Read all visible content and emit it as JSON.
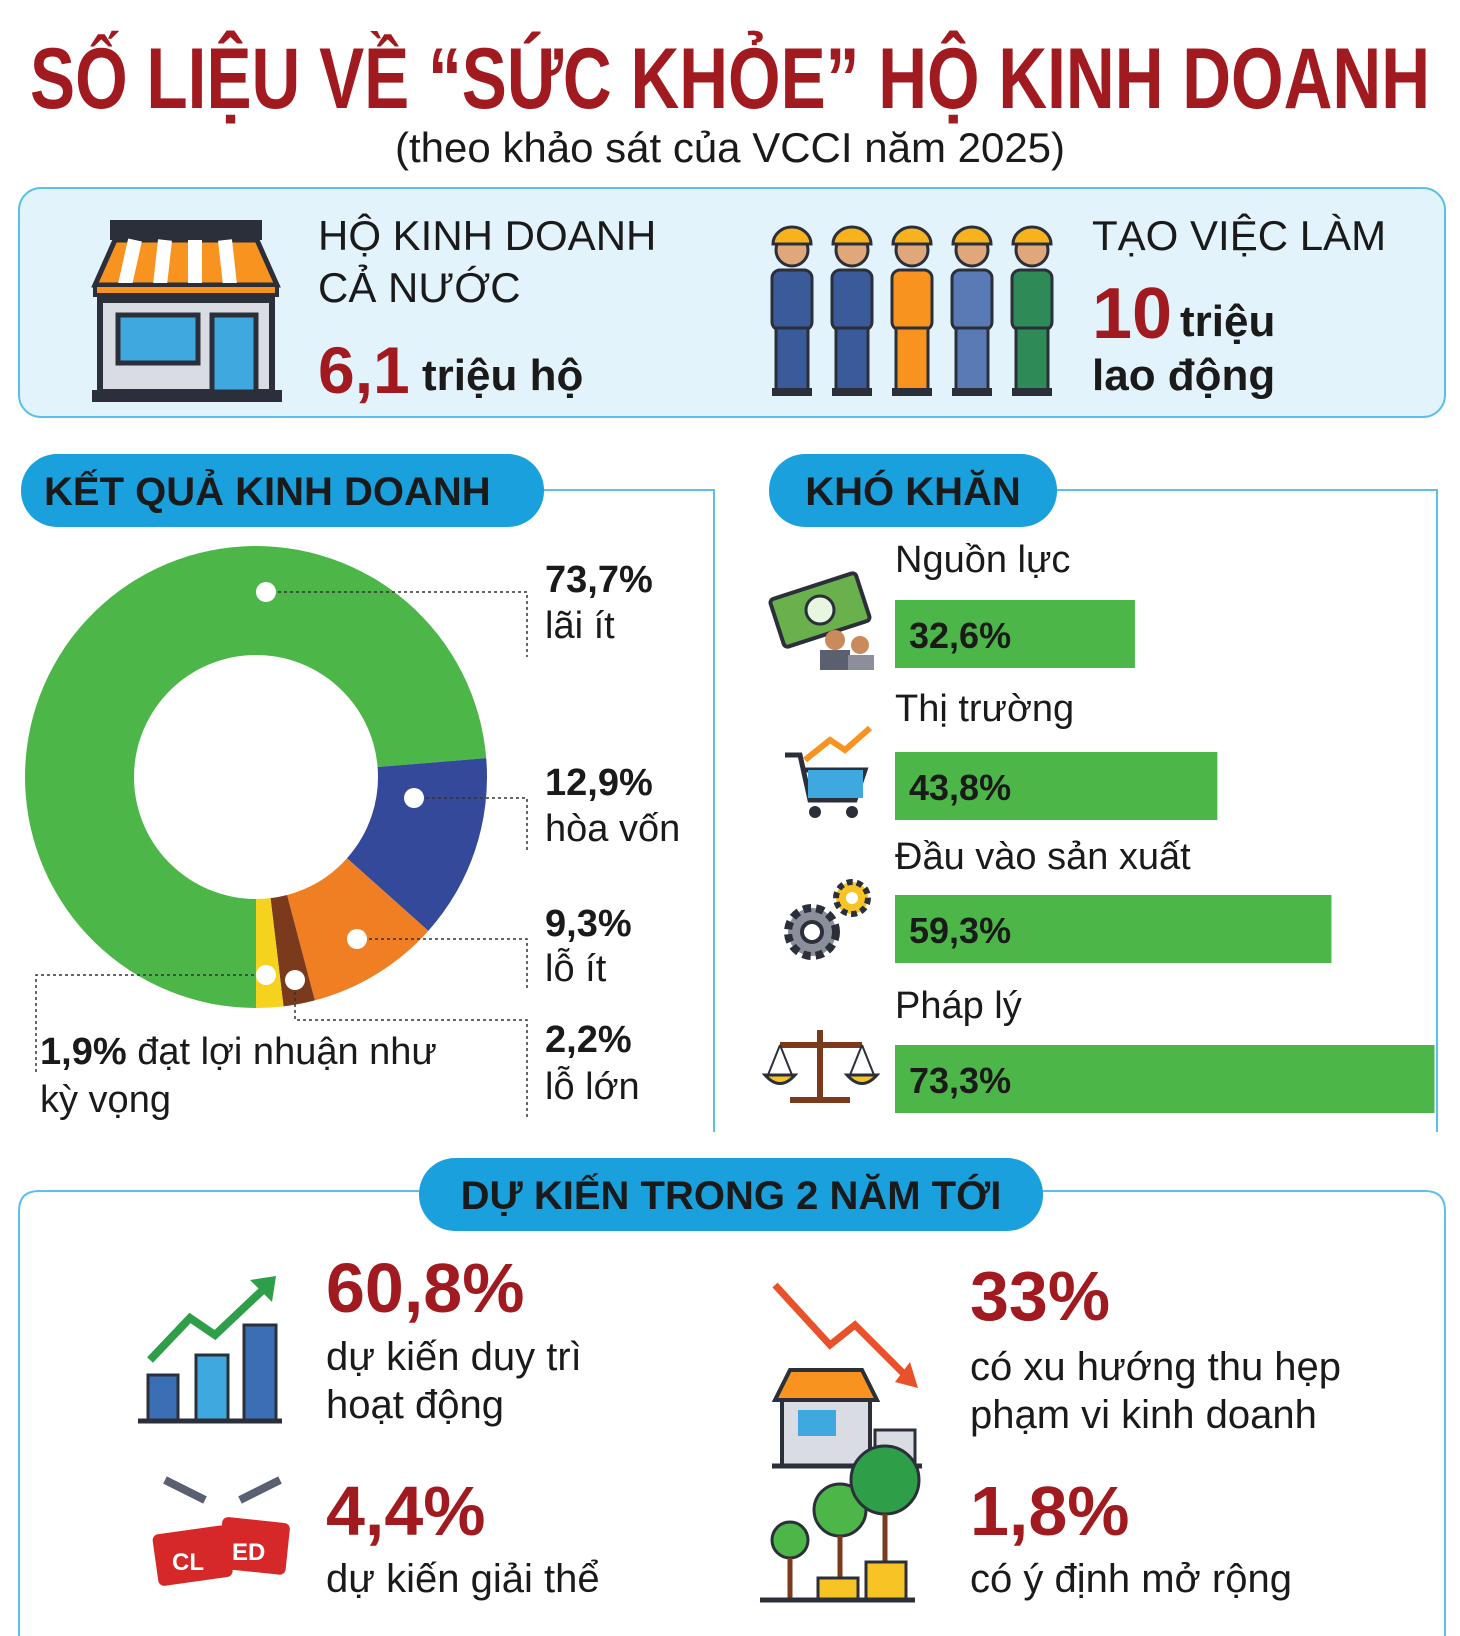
{
  "header": {
    "title": "SỐ LIỆU VỀ “SỨC KHỎE” HỘ KINH DOANH",
    "subtitle": "(theo khảo sát của VCCI năm 2025)"
  },
  "stats": [
    {
      "label": [
        "HỘ KINH DOANH",
        "CẢ NƯỚC"
      ],
      "value": "6,1",
      "unit": [
        "triệu hộ"
      ]
    },
    {
      "label": [
        "TẠO VIỆC LÀM"
      ],
      "value": "10",
      "unit": [
        "triệu",
        "lao động"
      ]
    }
  ],
  "chart_data": [
    {
      "type": "donut",
      "title": "KẾT QUẢ KINH DOANH",
      "categories": [
        "lãi ít",
        "hòa vốn",
        "lỗ ít",
        "lỗ lớn",
        "đạt lợi nhuận như kỳ vọng"
      ],
      "values": [
        73.7,
        12.9,
        9.3,
        2.2,
        1.9
      ],
      "value_labels": [
        "73,7%",
        "12,9%",
        "9,3%",
        "2,2%",
        "1,9%"
      ],
      "colors": [
        "#4cb648",
        "#34499a",
        "#f07f24",
        "#7b3a1c",
        "#f5d21d"
      ]
    },
    {
      "type": "bar",
      "orientation": "horizontal",
      "title": "KHÓ KHĂN",
      "categories": [
        "Nguồn lực",
        "Thị trường",
        "Đầu vào sản xuất",
        "Pháp lý"
      ],
      "values": [
        32.6,
        43.8,
        59.3,
        73.3
      ],
      "value_labels": [
        "32,6%",
        "43,8%",
        "59,3%",
        "73,3%"
      ],
      "color": "#4cb648"
    }
  ],
  "forecast": {
    "title": "DỰ KIẾN TRONG 2 NĂM TỚI",
    "items": [
      {
        "value": "60,8%",
        "text": [
          "dự kiến duy trì",
          "hoạt động"
        ]
      },
      {
        "value": "33%",
        "text": [
          "có xu hướng thu hẹp",
          "phạm vi kinh doanh"
        ]
      },
      {
        "value": "4,4%",
        "text": [
          "dự kiến giải thể"
        ]
      },
      {
        "value": "1,8%",
        "text": [
          "có ý định mở rộng"
        ]
      }
    ]
  }
}
